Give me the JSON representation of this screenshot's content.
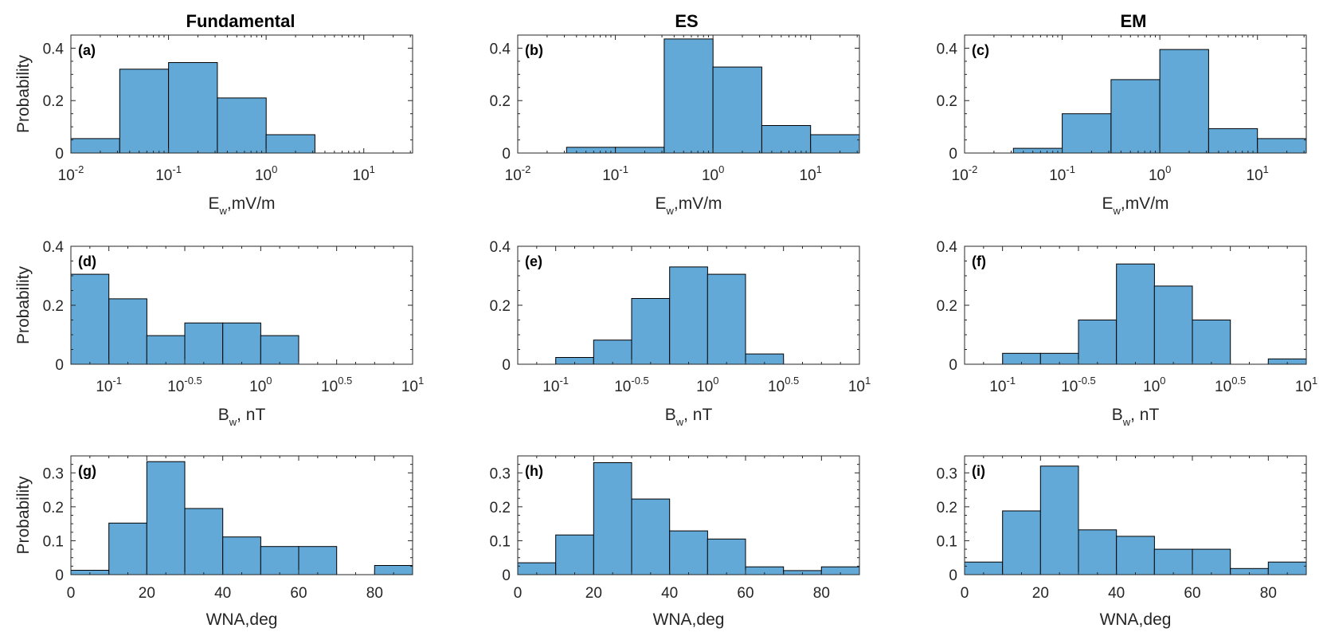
{
  "figure": {
    "column_titles": [
      "Fundamental",
      "ES",
      "EM"
    ],
    "bar_color": "#63A9D7"
  },
  "chart_data": [
    {
      "type": "bar",
      "panel": "(a)",
      "column": "Fundamental",
      "row": 1,
      "xscale": "log10",
      "xlim_log10": [
        -2,
        1.5
      ],
      "ylim": [
        0,
        0.45
      ],
      "bin_edges_log10": [
        -2,
        -1.5,
        -1,
        -0.5,
        0,
        0.5
      ],
      "values": [
        0.055,
        0.32,
        0.345,
        0.21,
        0.07
      ],
      "xticks_log10": [
        -2,
        -1,
        0,
        1
      ],
      "xtick_labels": [
        {
          "base": "10",
          "exp": "-2"
        },
        {
          "base": "10",
          "exp": "-1"
        },
        {
          "base": "10",
          "exp": "0"
        },
        {
          "base": "10",
          "exp": "1"
        }
      ],
      "yticks": [
        0,
        0.2,
        0.4
      ],
      "ytick_labels": [
        "0",
        "0.2",
        "0.4"
      ],
      "xlabel": {
        "main": "E",
        "sub": "w",
        "rest": ",mV/m"
      },
      "ylabel": "Probability"
    },
    {
      "type": "bar",
      "panel": "(b)",
      "column": "ES",
      "row": 1,
      "xscale": "log10",
      "xlim_log10": [
        -2,
        1.5
      ],
      "ylim": [
        0,
        0.45
      ],
      "bin_edges_log10": [
        -1.5,
        -1,
        -0.5,
        0,
        0.5,
        1,
        1.5
      ],
      "values": [
        0.022,
        0.022,
        0.435,
        0.328,
        0.105,
        0.07
      ],
      "xticks_log10": [
        -2,
        -1,
        0,
        1
      ],
      "xtick_labels": [
        {
          "base": "10",
          "exp": "-2"
        },
        {
          "base": "10",
          "exp": "-1"
        },
        {
          "base": "10",
          "exp": "0"
        },
        {
          "base": "10",
          "exp": "1"
        }
      ],
      "yticks": [
        0,
        0.2,
        0.4
      ],
      "ytick_labels": [
        "0",
        "0.2",
        "0.4"
      ],
      "xlabel": {
        "main": "E",
        "sub": "w",
        "rest": ",mV/m"
      },
      "ylabel": ""
    },
    {
      "type": "bar",
      "panel": "(c)",
      "column": "EM",
      "row": 1,
      "xscale": "log10",
      "xlim_log10": [
        -2,
        1.5
      ],
      "ylim": [
        0,
        0.45
      ],
      "bin_edges_log10": [
        -1.5,
        -1,
        -0.5,
        0,
        0.5,
        1,
        1.5
      ],
      "values": [
        0.018,
        0.15,
        0.28,
        0.395,
        0.093,
        0.055
      ],
      "xticks_log10": [
        -2,
        -1,
        0,
        1
      ],
      "xtick_labels": [
        {
          "base": "10",
          "exp": "-2"
        },
        {
          "base": "10",
          "exp": "-1"
        },
        {
          "base": "10",
          "exp": "0"
        },
        {
          "base": "10",
          "exp": "1"
        }
      ],
      "yticks": [
        0,
        0.2,
        0.4
      ],
      "ytick_labels": [
        "0",
        "0.2",
        "0.4"
      ],
      "xlabel": {
        "main": "E",
        "sub": "w",
        "rest": ",mV/m"
      },
      "ylabel": ""
    },
    {
      "type": "bar",
      "panel": "(d)",
      "column": "Fundamental",
      "row": 2,
      "xscale": "log10",
      "xlim_log10": [
        -1.25,
        1
      ],
      "ylim": [
        0,
        0.4
      ],
      "bin_edges_log10": [
        -1.25,
        -1,
        -0.75,
        -0.5,
        -0.25,
        0,
        0.25
      ],
      "values": [
        0.305,
        0.222,
        0.097,
        0.14,
        0.14,
        0.097
      ],
      "xticks_log10": [
        -1,
        -0.5,
        0,
        0.5,
        1
      ],
      "xtick_labels": [
        {
          "base": "10",
          "exp": "-1"
        },
        {
          "base": "10",
          "exp": "-0.5"
        },
        {
          "base": "10",
          "exp": "0"
        },
        {
          "base": "10",
          "exp": "0.5"
        },
        {
          "base": "10",
          "exp": "1"
        }
      ],
      "yticks": [
        0,
        0.2,
        0.4
      ],
      "ytick_labels": [
        "0",
        "0.2",
        "0.4"
      ],
      "xlabel": {
        "main": "B",
        "sub": "w",
        "rest": ", nT"
      },
      "ylabel": "Probability"
    },
    {
      "type": "bar",
      "panel": "(e)",
      "column": "ES",
      "row": 2,
      "xscale": "log10",
      "xlim_log10": [
        -1.25,
        1
      ],
      "ylim": [
        0,
        0.4
      ],
      "bin_edges_log10": [
        -1,
        -0.75,
        -0.5,
        -0.25,
        0,
        0.25,
        0.5
      ],
      "values": [
        0.023,
        0.082,
        0.223,
        0.33,
        0.305,
        0.035
      ],
      "xticks_log10": [
        -1,
        -0.5,
        0,
        0.5,
        1
      ],
      "xtick_labels": [
        {
          "base": "10",
          "exp": "-1"
        },
        {
          "base": "10",
          "exp": "-0.5"
        },
        {
          "base": "10",
          "exp": "0"
        },
        {
          "base": "10",
          "exp": "0.5"
        },
        {
          "base": "10",
          "exp": "1"
        }
      ],
      "yticks": [
        0,
        0.2,
        0.4
      ],
      "ytick_labels": [
        "0",
        "0.2",
        "0.4"
      ],
      "xlabel": {
        "main": "B",
        "sub": "w",
        "rest": ", nT"
      },
      "ylabel": ""
    },
    {
      "type": "bar",
      "panel": "(f)",
      "column": "EM",
      "row": 2,
      "xscale": "log10",
      "xlim_log10": [
        -1.25,
        1
      ],
      "ylim": [
        0,
        0.4
      ],
      "bin_edges_log10": [
        -1,
        -0.75,
        -0.5,
        -0.25,
        0,
        0.25,
        0.5,
        0.75,
        1
      ],
      "values": [
        0.037,
        0.037,
        0.15,
        0.34,
        0.265,
        0.15,
        0,
        0.018
      ],
      "xticks_log10": [
        -1,
        -0.5,
        0,
        0.5,
        1
      ],
      "xtick_labels": [
        {
          "base": "10",
          "exp": "-1"
        },
        {
          "base": "10",
          "exp": "-0.5"
        },
        {
          "base": "10",
          "exp": "0"
        },
        {
          "base": "10",
          "exp": "0.5"
        },
        {
          "base": "10",
          "exp": "1"
        }
      ],
      "yticks": [
        0,
        0.2,
        0.4
      ],
      "ytick_labels": [
        "0",
        "0.2",
        "0.4"
      ],
      "xlabel": {
        "main": "B",
        "sub": "w",
        "rest": ", nT"
      },
      "ylabel": ""
    },
    {
      "type": "bar",
      "panel": "(g)",
      "column": "Fundamental",
      "row": 3,
      "xscale": "linear",
      "xlim": [
        0,
        90
      ],
      "ylim": [
        0,
        0.35
      ],
      "bin_edges": [
        0,
        10,
        20,
        30,
        40,
        50,
        60,
        70,
        80,
        90
      ],
      "values": [
        0.013,
        0.152,
        0.333,
        0.195,
        0.111,
        0.083,
        0.083,
        0,
        0.027
      ],
      "xticks": [
        0,
        20,
        40,
        60,
        80
      ],
      "xtick_labels": [
        "0",
        "20",
        "40",
        "60",
        "80"
      ],
      "yticks": [
        0,
        0.1,
        0.2,
        0.3
      ],
      "ytick_labels": [
        "0",
        "0.1",
        "0.2",
        "0.3"
      ],
      "xlabel": {
        "main": "WNA,deg",
        "sub": "",
        "rest": ""
      },
      "ylabel": "Probability"
    },
    {
      "type": "bar",
      "panel": "(h)",
      "column": "ES",
      "row": 3,
      "xscale": "linear",
      "xlim": [
        0,
        90
      ],
      "ylim": [
        0,
        0.35
      ],
      "bin_edges": [
        0,
        10,
        20,
        30,
        40,
        50,
        60,
        70,
        80,
        90
      ],
      "values": [
        0.035,
        0.117,
        0.33,
        0.223,
        0.129,
        0.105,
        0.023,
        0.012,
        0.023
      ],
      "xticks": [
        0,
        20,
        40,
        60,
        80
      ],
      "xtick_labels": [
        "0",
        "20",
        "40",
        "60",
        "80"
      ],
      "yticks": [
        0,
        0.1,
        0.2,
        0.3
      ],
      "ytick_labels": [
        "0",
        "0.1",
        "0.2",
        "0.3"
      ],
      "xlabel": {
        "main": "WNA,deg",
        "sub": "",
        "rest": ""
      },
      "ylabel": ""
    },
    {
      "type": "bar",
      "panel": "(i)",
      "column": "EM",
      "row": 3,
      "xscale": "linear",
      "xlim": [
        0,
        90
      ],
      "ylim": [
        0,
        0.35
      ],
      "bin_edges": [
        0,
        10,
        20,
        30,
        40,
        50,
        60,
        70,
        80,
        90
      ],
      "values": [
        0.037,
        0.188,
        0.32,
        0.132,
        0.113,
        0.075,
        0.075,
        0.018,
        0.037
      ],
      "xticks": [
        0,
        20,
        40,
        60,
        80
      ],
      "xtick_labels": [
        "0",
        "20",
        "40",
        "60",
        "80"
      ],
      "yticks": [
        0,
        0.1,
        0.2,
        0.3
      ],
      "ytick_labels": [
        "0",
        "0.1",
        "0.2",
        "0.3"
      ],
      "xlabel": {
        "main": "WNA,deg",
        "sub": "",
        "rest": ""
      },
      "ylabel": ""
    }
  ]
}
